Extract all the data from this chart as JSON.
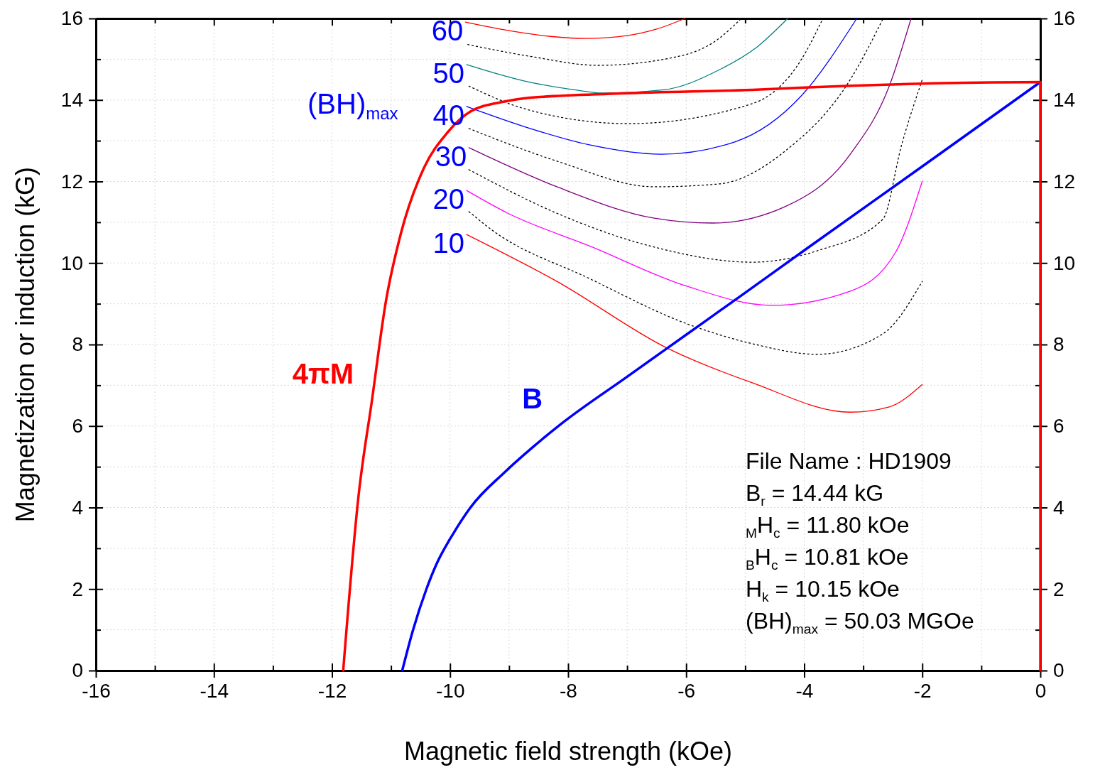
{
  "chart_data": {
    "type": "line",
    "xlabel": "Magnetic field strength (kOe)",
    "ylabel": "Magnetization or induction (kG)",
    "xlim": [
      -16,
      0
    ],
    "xticks": [
      -16,
      {
        "value": -15,
        "label": null
      },
      -14,
      {
        "value": -13,
        "label": null
      },
      -12,
      {
        "value": -11,
        "label": null
      },
      -10,
      {
        "value": -9,
        "label": null
      },
      -8,
      {
        "value": -7,
        "label": null
      },
      -6,
      {
        "value": -5,
        "label": null
      },
      -4,
      {
        "value": -3,
        "label": null
      },
      -2,
      {
        "value": -1,
        "label": null
      },
      0
    ],
    "ylim": [
      0,
      16
    ],
    "yticks": [
      0,
      {
        "value": 1,
        "label": null
      },
      2,
      {
        "value": 3,
        "label": null
      },
      4,
      {
        "value": 5,
        "label": null
      },
      6,
      {
        "value": 7,
        "label": null
      },
      8,
      {
        "value": 9,
        "label": null
      },
      10,
      {
        "value": 11,
        "label": null
      },
      12,
      {
        "value": 13,
        "label": null
      },
      14,
      {
        "value": 15,
        "label": null
      },
      16
    ],
    "y2lim": [
      0,
      16
    ],
    "y2ticks": [
      0,
      {
        "value": 1,
        "label": null
      },
      2,
      {
        "value": 3,
        "label": null
      },
      4,
      {
        "value": 5,
        "label": null
      },
      6,
      {
        "value": 7,
        "label": null
      },
      8,
      {
        "value": 9,
        "label": null
      },
      10,
      {
        "value": 11,
        "label": null
      },
      12,
      {
        "value": 13,
        "label": null
      },
      14,
      {
        "value": 15,
        "label": null
      },
      16
    ],
    "grid": true,
    "line_style": "solid",
    "annotations": [
      "(BH)$_{max}$",
      "File Name : HD1909",
      "B$_{r}$ = 14.44 kG",
      "$_{M}$H$_{c}$ = 11.80 kOe",
      "$_{B}$H$_{c}$ = 10.81 kOe",
      "H$_{k}$ = 10.15 kOe",
      "(BH)$_{max}$ = 50.03 MGOe",
      {
        "text": "60",
        "x": -9.74,
        "y": 15.91
      },
      {
        "text": "50",
        "x": -9.72,
        "y": 14.87
      },
      {
        "text": "40",
        "x": -9.72,
        "y": 13.84
      },
      {
        "text": "30",
        "x": -9.68,
        "y": 12.83
      },
      {
        "text": "20",
        "x": -9.72,
        "y": 11.78
      },
      {
        "text": "10",
        "x": -9.72,
        "y": 10.7
      }
    ],
    "series": [
      {
        "name": "4πM",
        "color": "#ff0000",
        "x": [
          -11.81,
          -11.55,
          -11.32,
          -11.09,
          -10.83,
          -10.44,
          -10.05,
          -9.65,
          -9.08,
          -8.75,
          -7.1,
          -4.88,
          -3.22,
          -1.79,
          0,
          0
        ],
        "values": [
          0,
          4.29,
          6.66,
          9.03,
          10.74,
          12.34,
          13.19,
          13.72,
          13.96,
          14.04,
          14.16,
          14.25,
          14.35,
          14.41,
          14.44,
          0
        ]
      },
      {
        "name": "B",
        "color": "#0000ff",
        "x": [
          -10.81,
          -10.63,
          -10.4,
          -10.24,
          -9.95,
          -9.65,
          -9.08,
          -8.6,
          -8.12,
          -7,
          -6,
          -5,
          -4,
          -2,
          0
        ],
        "values": [
          0,
          0.98,
          2,
          2.58,
          3.35,
          4.01,
          4.86,
          5.48,
          6.05,
          7.21,
          8.24,
          9.27,
          10.31,
          12.37,
          14.44
        ]
      },
      {
        "color": "#ff0000",
        "x": [
          -9.74,
          -9,
          -8.3,
          -7.7,
          -7,
          -6.5,
          -6.02
        ],
        "values": [
          15.91,
          15.7,
          15.56,
          15.51,
          15.58,
          15.74,
          16
        ]
      },
      {
        "color": "#000000",
        "line_style": "dotted",
        "x": [
          -9.7,
          -8.6,
          -7.5,
          -6.1,
          -5.5,
          -5.08
        ],
        "values": [
          15.36,
          15.06,
          14.85,
          15.08,
          15.45,
          15.98
        ]
      },
      {
        "color": "#008080",
        "x": [
          -9.72,
          -8.75,
          -7.9,
          -7.42,
          -6.38,
          -5.44,
          -4.8,
          -4.28
        ],
        "values": [
          14.87,
          14.47,
          14.25,
          14.17,
          14.25,
          14.74,
          15.3,
          16
        ]
      },
      {
        "color": "#000000",
        "line_style": "dotted",
        "x": [
          -9.68,
          -8.75,
          -6.98,
          -4.88,
          -4.05,
          -3.69
        ],
        "values": [
          14.34,
          13.79,
          13.42,
          13.91,
          14.99,
          15.98
        ]
      },
      {
        "color": "#0000ff",
        "x": [
          -9.72,
          -8.75,
          -7.64,
          -6.42,
          -5.16,
          -4.05,
          -3.11
        ],
        "values": [
          13.84,
          13.35,
          12.9,
          12.67,
          12.98,
          14.1,
          16
        ]
      },
      {
        "color": "#000000",
        "line_style": "dotted",
        "x": [
          -9.68,
          -8.19,
          -6.54,
          -5.44,
          -4.33,
          -3.22,
          -2.67
        ],
        "values": [
          13.3,
          12.5,
          11.87,
          11.94,
          12.74,
          14.5,
          15.98
        ]
      },
      {
        "color": "#800080",
        "x": [
          -9.68,
          -8.19,
          -6.54,
          -5.55,
          -4.33,
          -3.22,
          -2.56,
          -2.19
        ],
        "values": [
          12.83,
          11.87,
          11.1,
          10.98,
          11.38,
          12.67,
          14.34,
          16
        ]
      },
      {
        "color": "#000000",
        "line_style": "dotted",
        "x": [
          -9.68,
          -8.19,
          -6.54,
          -4.88,
          -3.78,
          -2.67,
          -2.35,
          -2
        ],
        "values": [
          12.29,
          11.22,
          10.39,
          10.02,
          10.3,
          11.07,
          12.9,
          14.5
        ]
      },
      {
        "color": "#ff00ff",
        "x": [
          -9.72,
          -9.02,
          -7.64,
          -5.99,
          -4.55,
          -3.22,
          -2.45,
          -2
        ],
        "values": [
          11.78,
          11.22,
          10.42,
          9.43,
          8.96,
          9.31,
          10.27,
          12.01
        ]
      },
      {
        "color": "#000000",
        "line_style": "dotted",
        "x": [
          -9.68,
          -9.3,
          -7.64,
          -5.99,
          -4.88,
          -3.78,
          -2.67,
          -2
        ],
        "values": [
          11.26,
          10.82,
          9.62,
          8.51,
          8.02,
          7.76,
          8.26,
          9.55
        ]
      },
      {
        "color": "#ff0000",
        "x": [
          -9.72,
          -8.19,
          -6.32,
          -4.88,
          -3.22,
          -2.56,
          -2
        ],
        "values": [
          10.7,
          9.55,
          7.91,
          7.06,
          6.34,
          6.47,
          7.02
        ]
      }
    ]
  }
}
